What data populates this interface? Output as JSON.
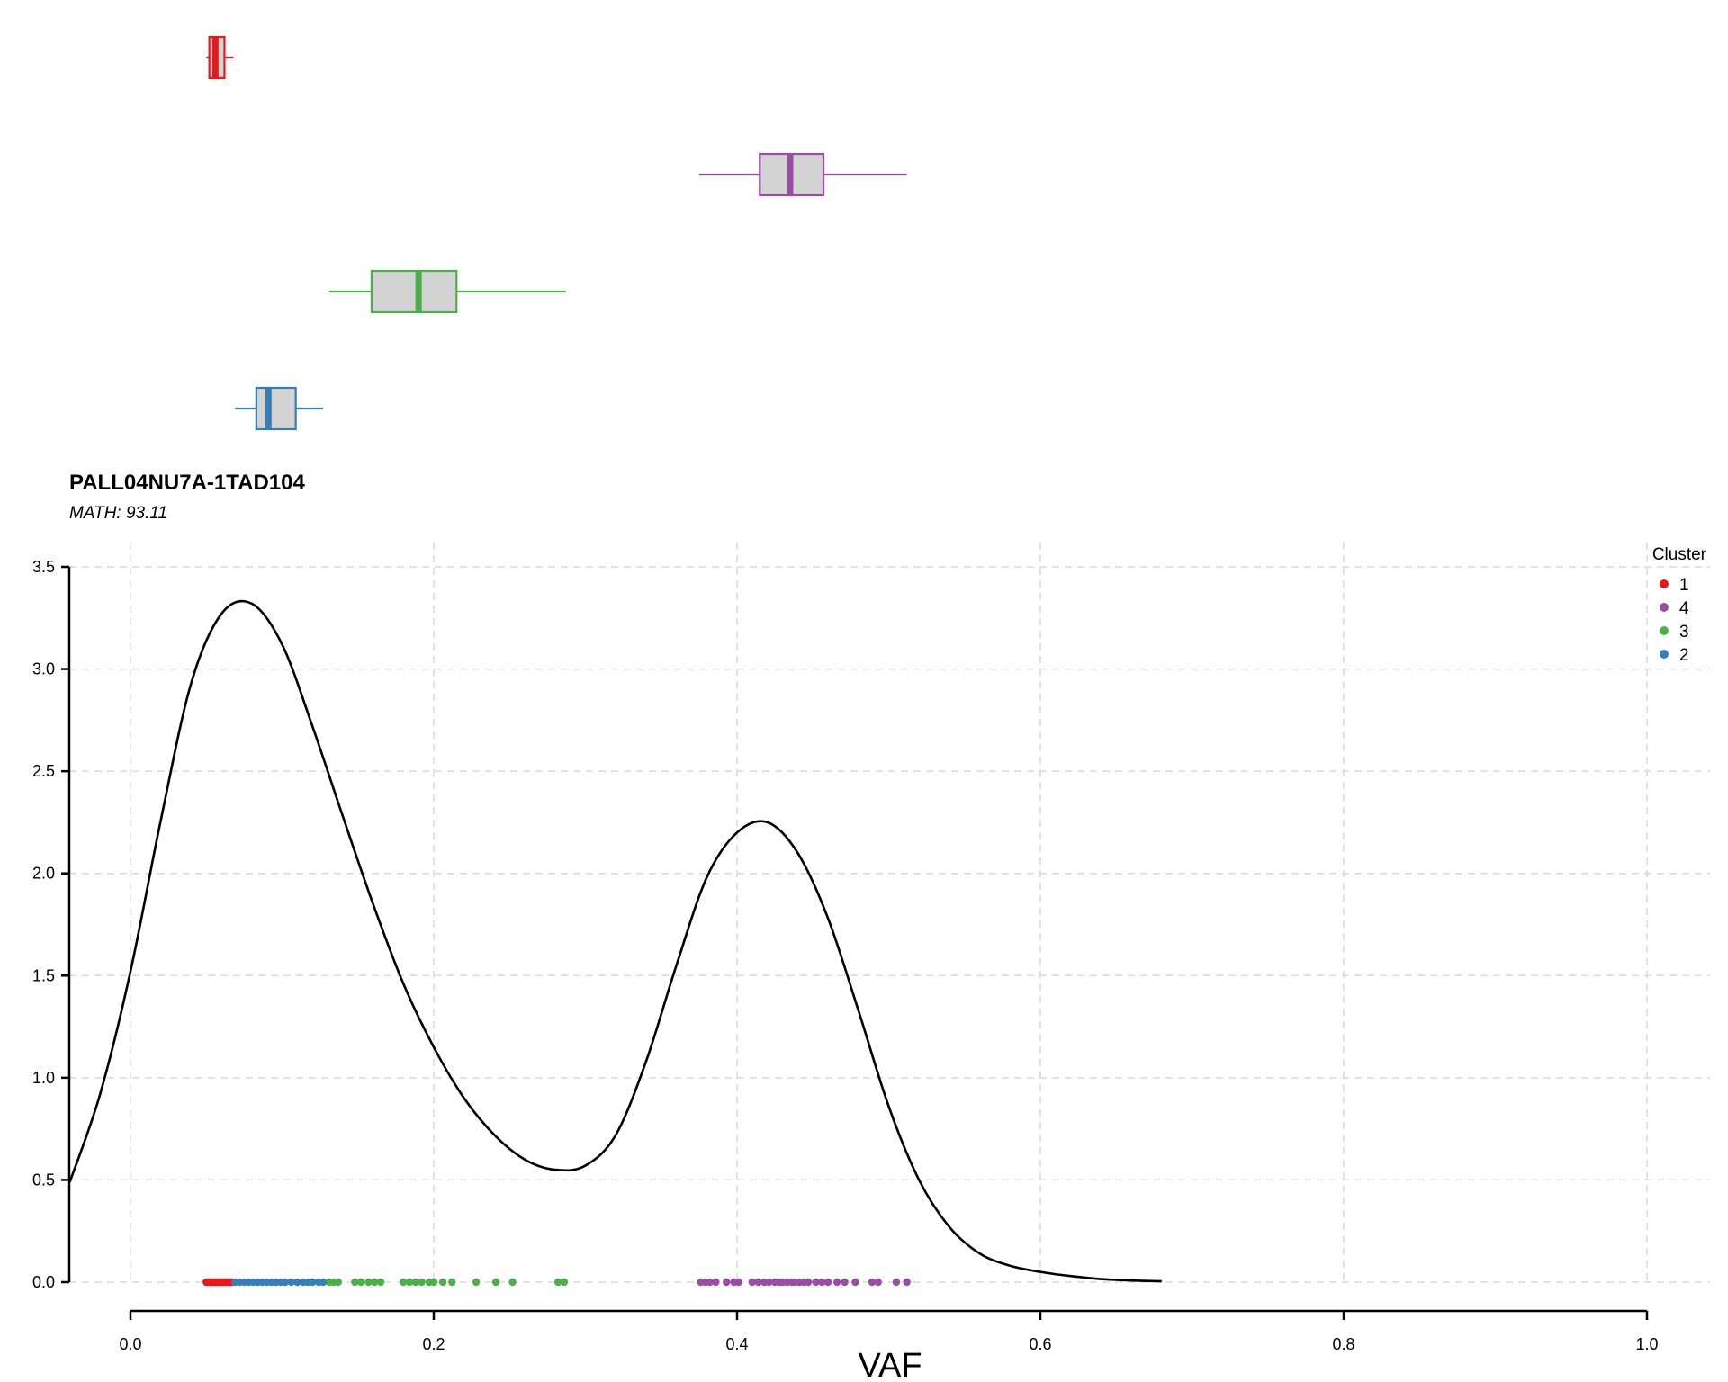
{
  "chart_data": {
    "type": "density",
    "title": "PALL04NU7A-1TAD104",
    "subtitle": "MATH: 93.11",
    "xlabel": "VAF",
    "ylabel": "",
    "xlim": [
      0.0,
      1.0
    ],
    "ylim": [
      0.0,
      3.5
    ],
    "x_ticks": [
      "0.0",
      "0.2",
      "0.4",
      "0.6",
      "0.8",
      "1.0"
    ],
    "y_ticks": [
      "0.0",
      "0.5",
      "1.0",
      "1.5",
      "2.0",
      "2.5",
      "3.0",
      "3.5"
    ],
    "grid": true,
    "legend": {
      "title": "Cluster",
      "position": "top-right"
    },
    "clusters": [
      {
        "name": "1",
        "color": "#e41a1c",
        "box": {
          "min": 0.05,
          "q1": 0.052,
          "median": 0.056,
          "q3": 0.062,
          "max": 0.068
        },
        "points": [
          0.05,
          0.051,
          0.052,
          0.053,
          0.054,
          0.055,
          0.056,
          0.057,
          0.058,
          0.059,
          0.06,
          0.061,
          0.062,
          0.063,
          0.064,
          0.065,
          0.066,
          0.067
        ]
      },
      {
        "name": "4",
        "color": "#984ea3",
        "box": {
          "min": 0.375,
          "q1": 0.415,
          "median": 0.435,
          "q3": 0.457,
          "max": 0.512
        },
        "points": [
          0.376,
          0.379,
          0.382,
          0.386,
          0.393,
          0.398,
          0.401,
          0.41,
          0.414,
          0.418,
          0.421,
          0.425,
          0.428,
          0.43,
          0.433,
          0.436,
          0.438,
          0.441,
          0.444,
          0.447,
          0.452,
          0.456,
          0.46,
          0.466,
          0.471,
          0.478,
          0.489,
          0.493,
          0.505,
          0.512
        ]
      },
      {
        "name": "3",
        "color": "#4daf4a",
        "box": {
          "min": 0.131,
          "q1": 0.159,
          "median": 0.19,
          "q3": 0.215,
          "max": 0.287
        },
        "points": [
          0.131,
          0.134,
          0.137,
          0.148,
          0.152,
          0.157,
          0.161,
          0.165,
          0.18,
          0.184,
          0.188,
          0.192,
          0.197,
          0.2,
          0.206,
          0.212,
          0.228,
          0.241,
          0.252,
          0.282,
          0.286
        ]
      },
      {
        "name": "2",
        "color": "#377eb8",
        "box": {
          "min": 0.069,
          "q1": 0.083,
          "median": 0.091,
          "q3": 0.109,
          "max": 0.127
        },
        "points": [
          0.069,
          0.072,
          0.075,
          0.078,
          0.081,
          0.084,
          0.087,
          0.09,
          0.093,
          0.096,
          0.099,
          0.102,
          0.106,
          0.11,
          0.114,
          0.117,
          0.12,
          0.124,
          0.127
        ]
      }
    ],
    "density_curve": {
      "x": [
        -0.04,
        -0.02,
        0.0,
        0.02,
        0.04,
        0.06,
        0.08,
        0.1,
        0.12,
        0.14,
        0.16,
        0.18,
        0.2,
        0.22,
        0.24,
        0.26,
        0.28,
        0.3,
        0.32,
        0.34,
        0.36,
        0.38,
        0.4,
        0.42,
        0.44,
        0.46,
        0.48,
        0.5,
        0.52,
        0.54,
        0.56,
        0.58,
        0.6,
        0.62,
        0.64,
        0.66,
        0.68
      ],
      "y": [
        0.49,
        0.92,
        1.52,
        2.26,
        2.93,
        3.27,
        3.32,
        3.12,
        2.72,
        2.28,
        1.85,
        1.46,
        1.15,
        0.9,
        0.72,
        0.6,
        0.55,
        0.57,
        0.72,
        1.08,
        1.55,
        1.98,
        2.2,
        2.25,
        2.1,
        1.78,
        1.33,
        0.86,
        0.5,
        0.27,
        0.14,
        0.08,
        0.05,
        0.03,
        0.015,
        0.008,
        0.004
      ]
    }
  }
}
